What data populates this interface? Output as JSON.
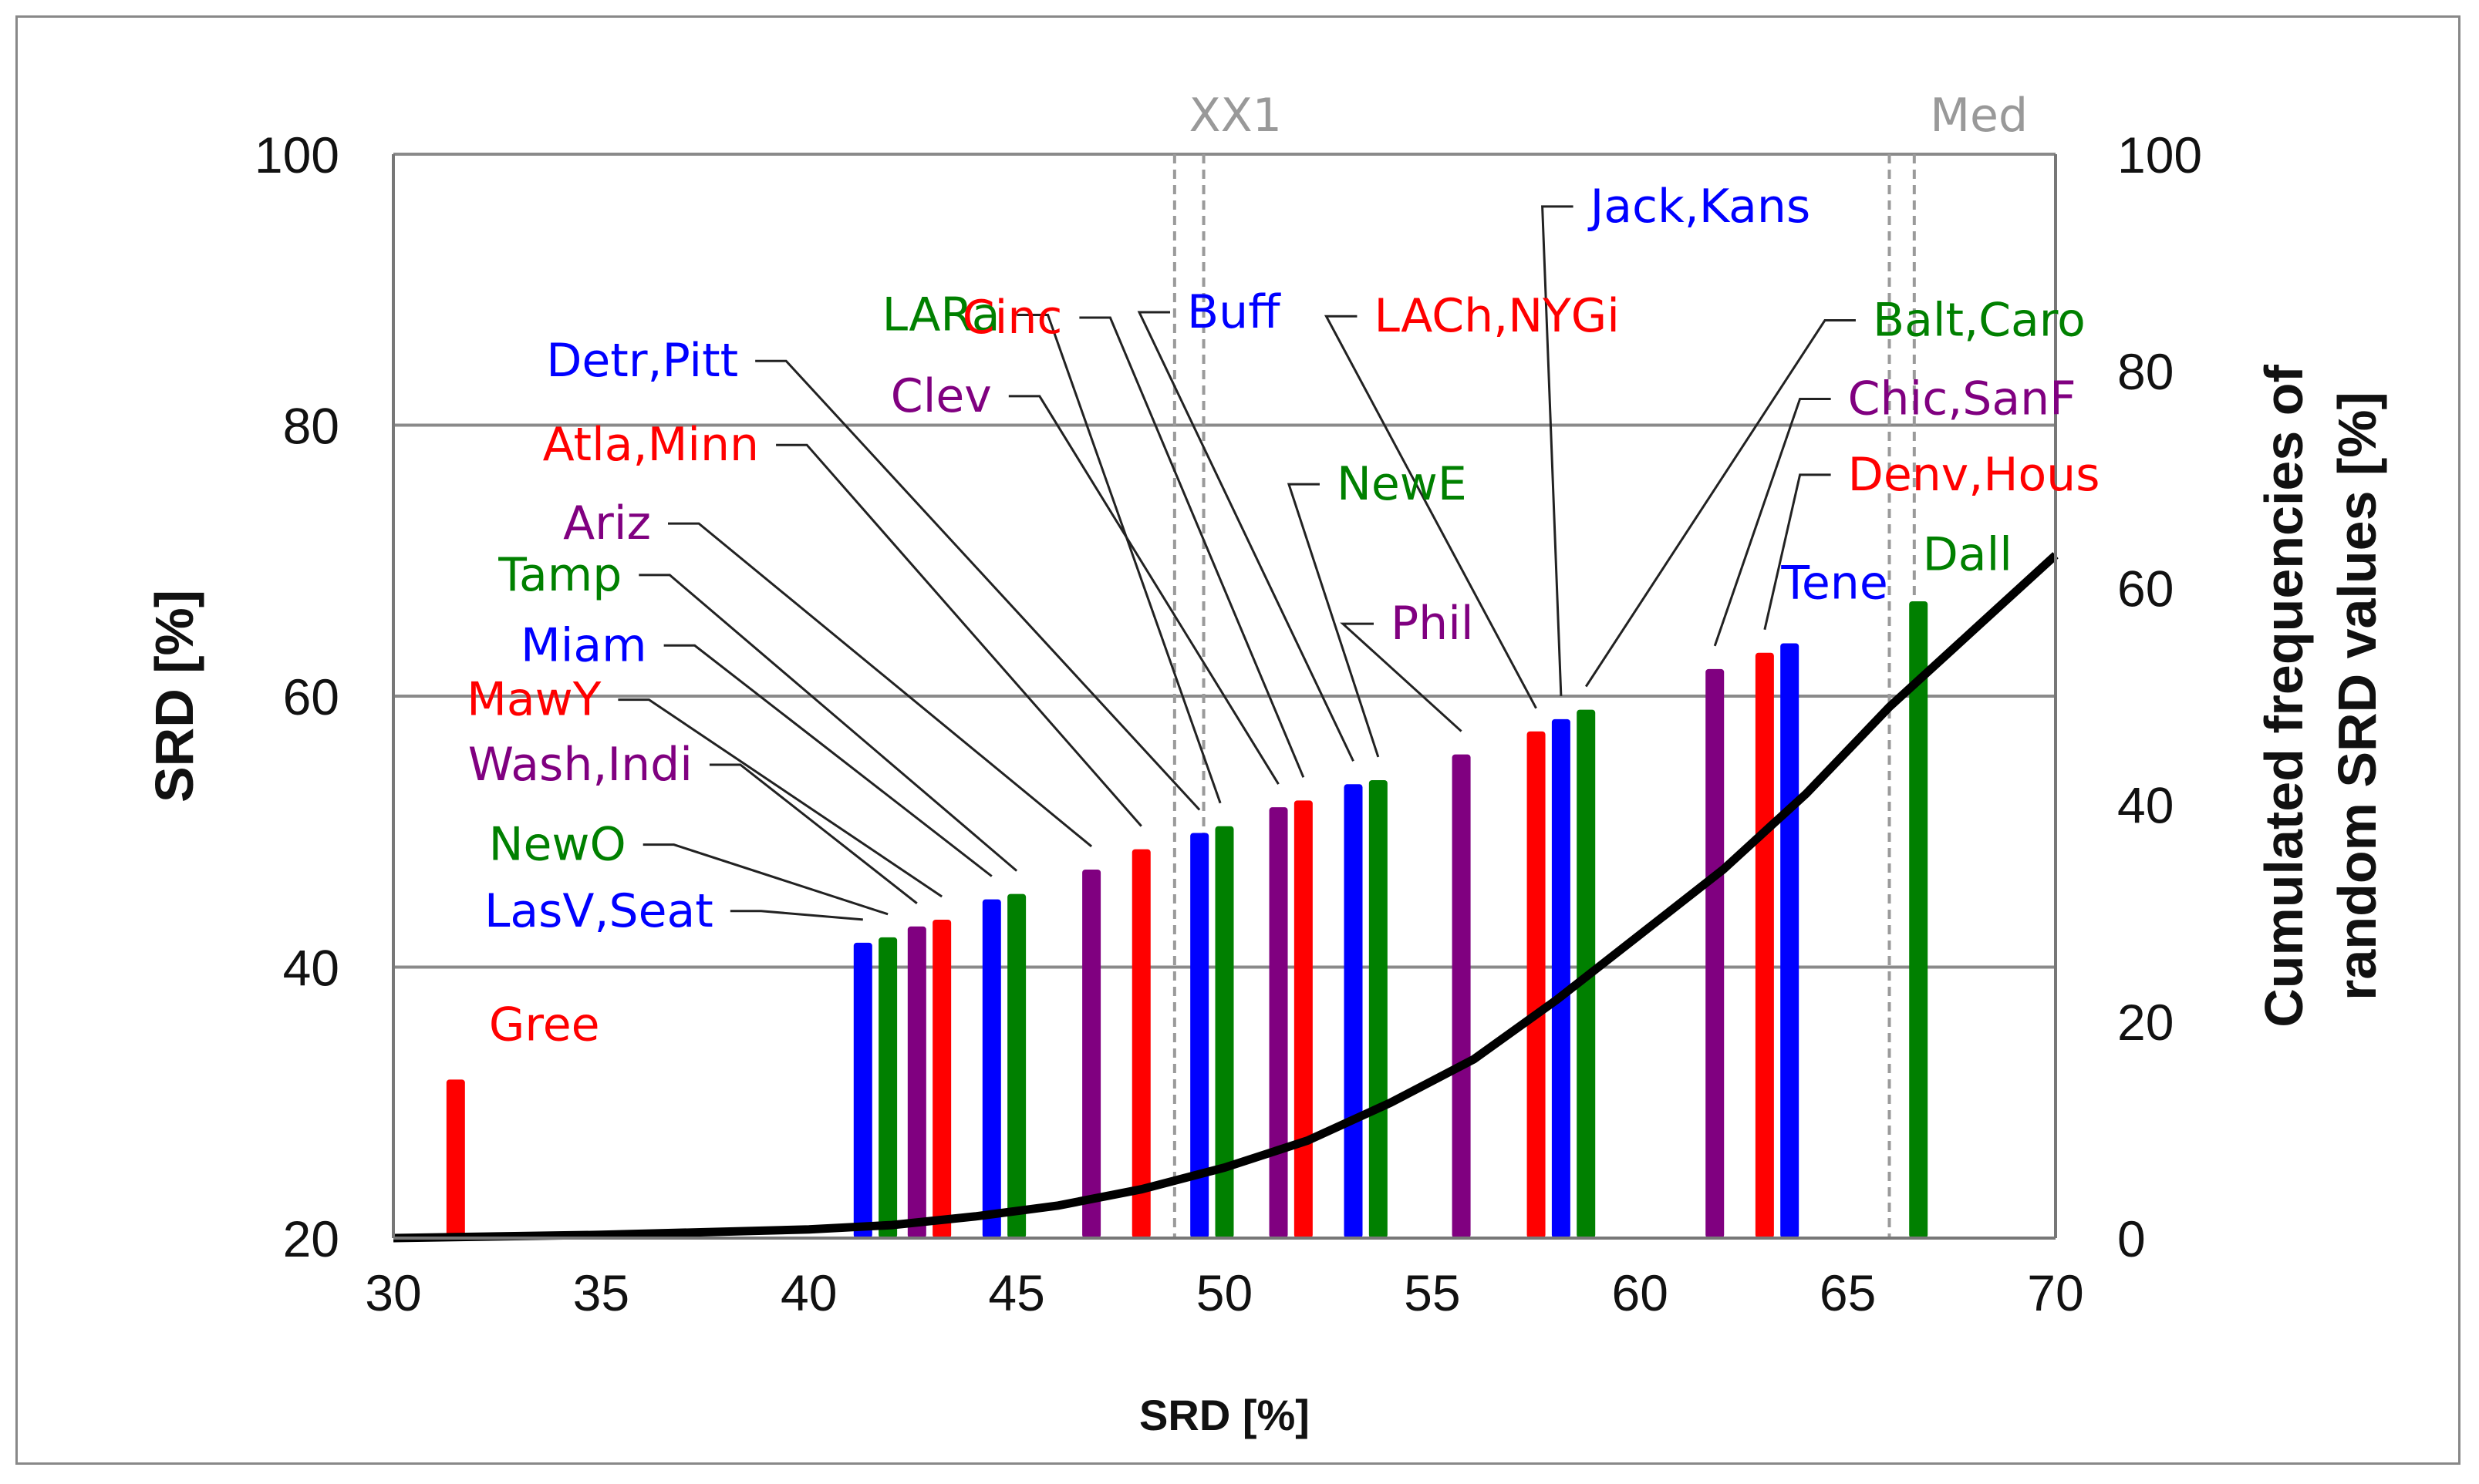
{
  "chart_data": {
    "type": "bar",
    "xlabel": "SRD [%]",
    "ylabel": "SRD [%]",
    "y2label_line1": "Cumulated frequencies of",
    "y2label_line2": "random SRD values [%]",
    "xlim": [
      30,
      70
    ],
    "xticks": [
      30,
      35,
      40,
      45,
      50,
      55,
      60,
      65,
      70
    ],
    "ylim": [
      20,
      100
    ],
    "yticks": [
      20,
      40,
      60,
      80,
      100
    ],
    "y2lim": [
      0,
      100
    ],
    "y2ticks": [
      0,
      20,
      40,
      60,
      80,
      100
    ],
    "grid": "horizontal",
    "colors": {
      "red": "#ff0000",
      "blue": "#0000ff",
      "green": "#008000",
      "purple": "#800080"
    },
    "bars": [
      {
        "x": 31.5,
        "y": 31.7,
        "color": "red"
      },
      {
        "x": 41.3,
        "y": 41.8,
        "color": "blue"
      },
      {
        "x": 41.9,
        "y": 42.2,
        "color": "green"
      },
      {
        "x": 42.6,
        "y": 43.0,
        "color": "purple"
      },
      {
        "x": 43.2,
        "y": 43.5,
        "color": "red"
      },
      {
        "x": 44.4,
        "y": 45.0,
        "color": "blue"
      },
      {
        "x": 45.0,
        "y": 45.4,
        "color": "green"
      },
      {
        "x": 46.8,
        "y": 47.2,
        "color": "purple"
      },
      {
        "x": 48.0,
        "y": 48.7,
        "color": "red"
      },
      {
        "x": 49.4,
        "y": 49.9,
        "color": "blue"
      },
      {
        "x": 50.0,
        "y": 50.4,
        "color": "green"
      },
      {
        "x": 51.3,
        "y": 51.8,
        "color": "purple"
      },
      {
        "x": 51.9,
        "y": 52.3,
        "color": "red"
      },
      {
        "x": 53.1,
        "y": 53.5,
        "color": "blue"
      },
      {
        "x": 53.7,
        "y": 53.8,
        "color": "green"
      },
      {
        "x": 55.7,
        "y": 55.7,
        "color": "purple"
      },
      {
        "x": 57.5,
        "y": 57.4,
        "color": "red"
      },
      {
        "x": 58.1,
        "y": 58.3,
        "color": "blue"
      },
      {
        "x": 58.7,
        "y": 59.0,
        "color": "green"
      },
      {
        "x": 61.8,
        "y": 62.0,
        "color": "purple"
      },
      {
        "x": 63.0,
        "y": 63.2,
        "color": "red"
      },
      {
        "x": 63.6,
        "y": 63.9,
        "color": "blue"
      },
      {
        "x": 66.7,
        "y": 67.0,
        "color": "green"
      }
    ],
    "reference_lines": [
      {
        "name": "XX1",
        "x": [
          48.8,
          49.5
        ]
      },
      {
        "name": "Med",
        "x": [
          66.0,
          66.6
        ]
      }
    ],
    "cumulative_curve": {
      "x": [
        30,
        35,
        40,
        42,
        44,
        46,
        48,
        50,
        52,
        54,
        56,
        58,
        60,
        62,
        64,
        66,
        68,
        70
      ],
      "y": [
        0,
        0.3,
        0.8,
        1.2,
        2.0,
        3.0,
        4.5,
        6.5,
        9.0,
        12.5,
        16.5,
        22,
        28,
        34,
        41,
        49,
        56,
        63
      ]
    },
    "annotations": [
      {
        "text": "LARa",
        "color": "green",
        "x": 44.6,
        "y": 87.0,
        "anchor": "end",
        "target": [
          49.9,
          50.4
        ]
      },
      {
        "text": "Detr,Pitt",
        "color": "blue",
        "x": 38.3,
        "y": 83.6,
        "anchor": "end",
        "target": [
          49.4,
          49.9
        ]
      },
      {
        "text": "Atla,Minn",
        "color": "red",
        "x": 38.8,
        "y": 77.4,
        "anchor": "end",
        "target": [
          48.0,
          48.7
        ]
      },
      {
        "text": "Ariz",
        "color": "purple",
        "x": 36.2,
        "y": 71.6,
        "anchor": "end",
        "target": [
          46.8,
          47.2
        ]
      },
      {
        "text": "Tamp",
        "color": "green",
        "x": 35.5,
        "y": 67.8,
        "anchor": "end",
        "target": [
          45.0,
          45.4
        ]
      },
      {
        "text": "Miam",
        "color": "blue",
        "x": 36.1,
        "y": 62.6,
        "anchor": "end",
        "target": [
          44.4,
          45.0
        ]
      },
      {
        "text": "MawY",
        "color": "red",
        "x": 35.0,
        "y": 58.6,
        "anchor": "end",
        "target": [
          43.2,
          43.5
        ]
      },
      {
        "text": "Wash,Indi",
        "color": "purple",
        "x": 37.2,
        "y": 53.8,
        "anchor": "end",
        "target": [
          42.6,
          43.0
        ]
      },
      {
        "text": "NewO",
        "color": "green",
        "x": 35.6,
        "y": 47.9,
        "anchor": "end",
        "target": [
          41.9,
          42.2
        ]
      },
      {
        "text": "LasV,Seat",
        "color": "blue",
        "x": 37.7,
        "y": 43.0,
        "anchor": "end",
        "target": [
          41.3,
          41.8
        ]
      },
      {
        "text": "Gree",
        "color": "red",
        "x": 32.3,
        "y": 34.6,
        "anchor": "start",
        "target": null
      },
      {
        "text": "Cinc",
        "color": "red",
        "x": 46.1,
        "y": 86.8,
        "anchor": "end",
        "target": [
          51.9,
          52.3
        ]
      },
      {
        "text": "Clev",
        "color": "purple",
        "x": 44.4,
        "y": 81.0,
        "anchor": "end",
        "target": [
          51.3,
          51.8
        ]
      },
      {
        "text": "Buff",
        "color": "blue",
        "x": 49.1,
        "y": 87.2,
        "anchor": "start",
        "target": [
          53.1,
          53.5
        ]
      },
      {
        "text": "NewE",
        "color": "green",
        "x": 52.7,
        "y": 74.5,
        "anchor": "start",
        "target": [
          53.7,
          53.8
        ]
      },
      {
        "text": "Phil",
        "color": "purple",
        "x": 54.0,
        "y": 64.2,
        "anchor": "start",
        "target": [
          55.7,
          55.7
        ]
      },
      {
        "text": "LACh,NYGi",
        "color": "red",
        "x": 53.6,
        "y": 86.9,
        "anchor": "start",
        "target": [
          57.5,
          57.4
        ]
      },
      {
        "text": "Jack,Kans",
        "color": "blue",
        "x": 58.8,
        "y": 95.0,
        "anchor": "start",
        "target": [
          58.1,
          58.3
        ]
      },
      {
        "text": "Balt,Caro",
        "color": "green",
        "x": 65.6,
        "y": 86.6,
        "anchor": "start",
        "target": [
          58.7,
          59.0
        ]
      },
      {
        "text": "Chic,SanF",
        "color": "purple",
        "x": 65.0,
        "y": 80.8,
        "anchor": "start",
        "target": [
          61.8,
          62.0
        ]
      },
      {
        "text": "Denv,Hous",
        "color": "red",
        "x": 65.0,
        "y": 75.2,
        "anchor": "start",
        "target": [
          63.0,
          63.2
        ]
      },
      {
        "text": "Tene",
        "color": "blue",
        "x": 63.4,
        "y": 67.2,
        "anchor": "start",
        "target": null
      },
      {
        "text": "Dall",
        "color": "green",
        "x": 66.8,
        "y": 69.3,
        "anchor": "start",
        "target": null
      }
    ]
  }
}
